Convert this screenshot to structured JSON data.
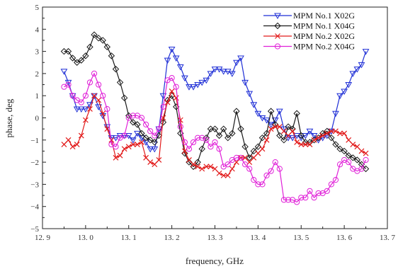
{
  "chart_data": {
    "type": "line",
    "title": "",
    "xlabel": "frequency, GHz",
    "ylabel": "phase, deg",
    "xlim": [
      12.9,
      13.7
    ],
    "ylim": [
      -5,
      5
    ],
    "xticks": [
      12.9,
      13.0,
      13.1,
      13.2,
      13.3,
      13.4,
      13.5,
      13.6,
      13.7
    ],
    "xtick_labels": [
      "12. 9",
      "13. 0",
      "13. 1",
      "13. 2",
      "13. 3",
      "13. 4",
      "13. 5",
      "13. 6",
      "13. 7"
    ],
    "yticks": [
      -5,
      -4,
      -3,
      -2,
      -1,
      0,
      1,
      2,
      3,
      4,
      5
    ],
    "ytick_labels": [
      "−5",
      "−4",
      "−3",
      "−2",
      "−1",
      "0",
      "1",
      "2",
      "3",
      "4",
      "5"
    ],
    "grid": false,
    "legend_position": "top-right",
    "x": [
      12.95,
      12.96,
      12.97,
      12.98,
      12.99,
      13.0,
      13.01,
      13.02,
      13.03,
      13.04,
      13.05,
      13.06,
      13.07,
      13.08,
      13.09,
      13.1,
      13.11,
      13.12,
      13.13,
      13.14,
      13.15,
      13.16,
      13.17,
      13.18,
      13.19,
      13.2,
      13.21,
      13.22,
      13.23,
      13.24,
      13.25,
      13.26,
      13.27,
      13.28,
      13.29,
      13.3,
      13.31,
      13.32,
      13.33,
      13.34,
      13.35,
      13.36,
      13.37,
      13.38,
      13.39,
      13.4,
      13.41,
      13.42,
      13.43,
      13.44,
      13.45,
      13.46,
      13.47,
      13.48,
      13.49,
      13.5,
      13.51,
      13.52,
      13.53,
      13.54,
      13.55,
      13.56,
      13.57,
      13.58,
      13.59,
      13.6,
      13.61,
      13.62,
      13.63,
      13.64,
      13.65
    ],
    "series": [
      {
        "name": "MPM No.1 X02G",
        "color": "#1f2fd6",
        "marker": "triangle-down",
        "values": [
          2.1,
          1.6,
          1.0,
          0.4,
          0.4,
          0.4,
          0.6,
          1.0,
          0.5,
          0.1,
          -0.4,
          -0.9,
          -0.9,
          -0.8,
          -0.8,
          -0.8,
          -1.0,
          -0.7,
          -0.9,
          -1.1,
          -1.4,
          -1.4,
          -0.5,
          1.0,
          2.6,
          3.1,
          2.7,
          2.3,
          1.8,
          1.4,
          1.4,
          1.5,
          1.6,
          1.7,
          2.0,
          2.2,
          2.2,
          2.1,
          2.1,
          2.0,
          2.5,
          2.7,
          1.6,
          1.1,
          0.6,
          0.2,
          0.0,
          -0.1,
          -0.3,
          -0.1,
          0.3,
          -0.5,
          -0.9,
          -0.9,
          -0.8,
          -0.9,
          -0.8,
          -0.6,
          -0.8,
          -1.0,
          -0.9,
          -0.8,
          -0.6,
          0.2,
          1.0,
          1.2,
          1.5,
          2.0,
          2.2,
          2.4,
          3.0
        ]
      },
      {
        "name": "MPM No.1 X04G",
        "color": "#1a1a1a",
        "marker": "diamond",
        "values": [
          3.0,
          3.0,
          2.7,
          2.5,
          2.6,
          2.8,
          3.2,
          3.75,
          3.6,
          3.5,
          3.2,
          2.8,
          2.2,
          1.6,
          0.9,
          0.1,
          -0.2,
          -0.3,
          -0.7,
          -0.9,
          -1.0,
          -1.1,
          -0.8,
          -0.2,
          0.8,
          1.0,
          0.5,
          -0.7,
          -1.6,
          -2.0,
          -2.2,
          -2.0,
          -1.4,
          -0.9,
          -0.5,
          -0.5,
          -0.8,
          -0.5,
          -0.9,
          -0.7,
          0.3,
          -0.5,
          -1.3,
          -1.8,
          -1.5,
          -1.3,
          -0.9,
          -0.7,
          0.3,
          -0.3,
          -0.8,
          -1.0,
          -0.4,
          -0.5,
          0.2,
          -0.8,
          -1.1,
          -1.1,
          -1.0,
          -0.9,
          -0.7,
          -0.6,
          -0.9,
          -1.2,
          -1.4,
          -1.5,
          -1.7,
          -1.8,
          -1.9,
          -2.1,
          -2.3
        ]
      },
      {
        "name": "MPM No.2 X02G",
        "color": "#e21b1b",
        "marker": "x",
        "values": [
          -1.2,
          -1.0,
          -1.3,
          -1.2,
          -0.8,
          -0.1,
          0.4,
          1.0,
          0.8,
          0.2,
          -0.5,
          -1.0,
          -1.8,
          -1.7,
          -1.4,
          -1.3,
          -1.2,
          -1.2,
          -1.1,
          -1.8,
          -2.0,
          -2.1,
          -1.9,
          0.0,
          0.7,
          1.2,
          0.9,
          -0.1,
          -1.5,
          -1.9,
          -2.1,
          -2.2,
          -2.3,
          -2.2,
          -2.2,
          -2.3,
          -2.5,
          -2.6,
          -2.6,
          -2.3,
          -2.0,
          -1.8,
          -1.8,
          -2.0,
          -1.8,
          -1.6,
          -1.4,
          -1.0,
          -0.5,
          -0.4,
          -0.4,
          -0.6,
          -0.8,
          -0.6,
          -1.1,
          -1.2,
          -1.2,
          -1.2,
          -1.0,
          -0.9,
          -0.8,
          -0.7,
          -0.6,
          -0.6,
          -0.7,
          -0.7,
          -1.0,
          -1.2,
          -1.3,
          -1.5,
          -1.6
        ]
      },
      {
        "name": "MPM No.2 X04G",
        "color": "#e020d8",
        "marker": "circle",
        "values": [
          1.4,
          1.5,
          1.0,
          0.8,
          0.7,
          1.0,
          1.6,
          2.0,
          1.5,
          1.0,
          0.4,
          -1.2,
          -1.3,
          -0.9,
          -0.8,
          0.0,
          0.1,
          0.1,
          0.0,
          -0.3,
          -0.6,
          -0.8,
          -0.5,
          0.5,
          1.7,
          1.8,
          1.4,
          -0.4,
          -1.1,
          -1.4,
          -1.1,
          -0.9,
          -0.9,
          -1.0,
          -1.3,
          -1.1,
          -1.4,
          -2.2,
          -2.1,
          -1.9,
          -1.8,
          -1.8,
          -2.1,
          -2.3,
          -2.8,
          -3.0,
          -3.0,
          -2.6,
          -2.4,
          -2.0,
          -2.3,
          -3.7,
          -3.7,
          -3.7,
          -3.8,
          -3.6,
          -3.6,
          -3.3,
          -3.6,
          -3.4,
          -3.4,
          -3.3,
          -3.0,
          -2.8,
          -2.1,
          -1.9,
          -2.0,
          -2.3,
          -2.4,
          -2.3,
          -1.9
        ]
      }
    ]
  }
}
